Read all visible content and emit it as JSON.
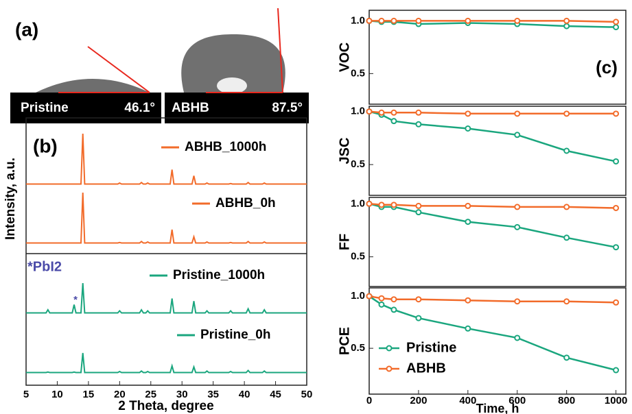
{
  "panel_a": {
    "label": "(a)",
    "images": [
      {
        "name": "Pristine",
        "angle": "46.1°"
      },
      {
        "name": "ABHB",
        "angle": "87.5°"
      }
    ]
  },
  "chart_data": [
    {
      "type": "line",
      "label": "(b)",
      "xlabel": "2 Theta, degree",
      "ylabel": "Intensity, a.u.",
      "xlim": [
        5,
        50
      ],
      "xticks": [
        5,
        10,
        15,
        20,
        25,
        30,
        35,
        40,
        45,
        50
      ],
      "ylim": [
        0,
        100
      ],
      "x": [
        5,
        8.2,
        8.5,
        8.8,
        12.4,
        12.7,
        13.0,
        13.8,
        14.1,
        14.4,
        19.7,
        20,
        20.3,
        23.2,
        23.5,
        23.8,
        24.2,
        24.5,
        24.8,
        28.1,
        28.4,
        28.7,
        31.6,
        31.9,
        32.2,
        33.7,
        34,
        34.3,
        37.5,
        37.8,
        38.1,
        40.3,
        40.6,
        40.9,
        42.9,
        43.2,
        43.5,
        50
      ],
      "series": [
        {
          "name": "ABHB_1000h",
          "color": "#f26b2a",
          "values": [
            2,
            2,
            2,
            2,
            2,
            2,
            2,
            2,
            100,
            2,
            2,
            4,
            2,
            2,
            5,
            2,
            2,
            4,
            2,
            2,
            30,
            2,
            2,
            18,
            2,
            2,
            4,
            2,
            2,
            3,
            2,
            2,
            5,
            2,
            2,
            4,
            2,
            2
          ]
        },
        {
          "name": "ABHB_0h",
          "color": "#f26b2a",
          "values": [
            2,
            2,
            2,
            2,
            2,
            2,
            2,
            2,
            100,
            2,
            2,
            3,
            2,
            2,
            5,
            2,
            2,
            4,
            2,
            2,
            28,
            2,
            2,
            14,
            2,
            2,
            4,
            2,
            2,
            3,
            2,
            2,
            5,
            2,
            2,
            4,
            2,
            2
          ]
        },
        {
          "name": "Pristine_1000h",
          "color": "#1aa67e",
          "values": [
            2,
            2,
            8,
            2,
            2,
            18,
            2,
            2,
            60,
            2,
            2,
            6,
            2,
            2,
            8,
            2,
            2,
            6,
            2,
            2,
            30,
            2,
            2,
            25,
            2,
            2,
            6,
            2,
            2,
            6,
            2,
            2,
            10,
            2,
            2,
            8,
            2,
            2
          ]
        },
        {
          "name": "Pristine_0h",
          "color": "#1aa67e",
          "values": [
            2,
            2,
            3,
            2,
            2,
            3,
            2,
            2,
            40,
            2,
            2,
            4,
            2,
            2,
            5,
            2,
            2,
            4,
            2,
            2,
            15,
            2,
            2,
            13,
            2,
            2,
            5,
            2,
            2,
            4,
            2,
            2,
            6,
            2,
            2,
            5,
            2,
            2
          ]
        }
      ],
      "annotations": [
        "*PbI2",
        "*"
      ]
    },
    {
      "type": "line",
      "label": "(c)",
      "ylabel": "VOC",
      "x": [
        0,
        50,
        100,
        200,
        400,
        600,
        800,
        1000
      ],
      "xlim": [
        0,
        1040
      ],
      "ylim": [
        0.21,
        1.1
      ],
      "yticks": [
        0.5,
        {
          "value": 1,
          "label": "1.0"
        }
      ],
      "series": [
        {
          "name": "Pristine",
          "color": "#1aa67e",
          "values": [
            1,
            0.99,
            0.99,
            0.97,
            0.98,
            0.97,
            0.95,
            0.94
          ]
        },
        {
          "name": "ABHB",
          "color": "#f26b2a",
          "values": [
            1,
            1,
            1,
            1,
            1,
            1,
            1,
            0.99
          ]
        }
      ]
    },
    {
      "type": "line",
      "ylabel": "JSC",
      "x": [
        0,
        50,
        100,
        200,
        400,
        600,
        800,
        1000
      ],
      "xlim": [
        0,
        1040
      ],
      "ylim": [
        0.21,
        1.05
      ],
      "yticks": [
        0.5,
        {
          "value": 1,
          "label": "1.0"
        }
      ],
      "series": [
        {
          "name": "Pristine",
          "color": "#1aa67e",
          "values": [
            1,
            0.97,
            0.91,
            0.88,
            0.84,
            0.78,
            0.63,
            0.53
          ]
        },
        {
          "name": "ABHB",
          "color": "#f26b2a",
          "values": [
            1,
            0.99,
            0.99,
            0.99,
            0.98,
            0.98,
            0.98,
            0.98
          ]
        }
      ]
    },
    {
      "type": "line",
      "ylabel": "FF",
      "x": [
        0,
        50,
        100,
        200,
        400,
        600,
        800,
        1000
      ],
      "xlim": [
        0,
        1040
      ],
      "ylim": [
        0.22,
        1.06
      ],
      "yticks": [
        0.5,
        {
          "value": 1,
          "label": "1.0"
        }
      ],
      "series": [
        {
          "name": "Pristine",
          "color": "#1aa67e",
          "values": [
            1,
            0.97,
            0.97,
            0.92,
            0.83,
            0.78,
            0.68,
            0.59
          ]
        },
        {
          "name": "ABHB",
          "color": "#f26b2a",
          "values": [
            1,
            0.99,
            0.99,
            0.98,
            0.98,
            0.97,
            0.97,
            0.96
          ]
        }
      ]
    },
    {
      "type": "line",
      "ylabel": "PCE",
      "xlabel": "Time, h",
      "x": [
        0,
        50,
        100,
        200,
        400,
        600,
        800,
        1000
      ],
      "xlim": [
        0,
        1040
      ],
      "xticks": [
        0,
        200,
        400,
        600,
        800,
        1000
      ],
      "ylim": [
        0.06,
        1.08
      ],
      "yticks": [
        0.5,
        {
          "value": 1,
          "label": "1.0"
        }
      ],
      "legend": "lower left",
      "series": [
        {
          "name": "Pristine",
          "color": "#1aa67e",
          "values": [
            1,
            0.92,
            0.87,
            0.79,
            0.69,
            0.6,
            0.41,
            0.29
          ]
        },
        {
          "name": "ABHB",
          "color": "#f26b2a",
          "values": [
            1,
            0.98,
            0.97,
            0.97,
            0.96,
            0.95,
            0.95,
            0.94
          ]
        }
      ]
    }
  ]
}
